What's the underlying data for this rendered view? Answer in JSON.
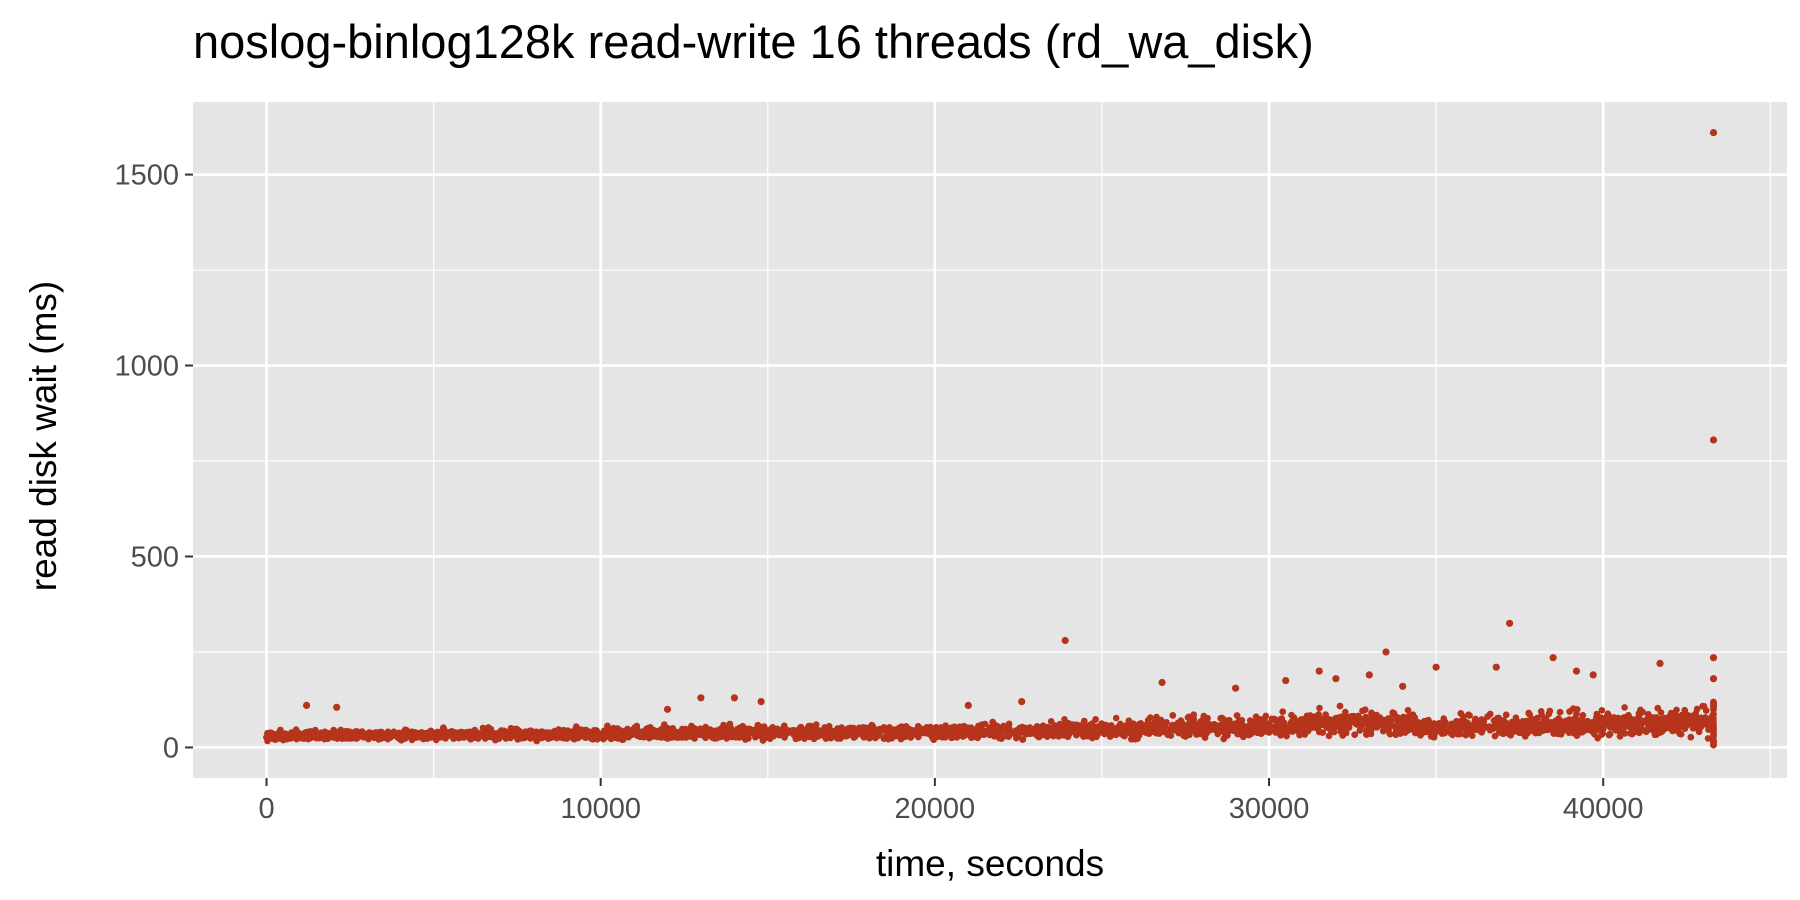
{
  "chart_data": {
    "type": "scatter",
    "title": "noslog-binlog128k read-write 16 threads (rd_wa_disk)",
    "xlabel": "time, seconds",
    "ylabel": "read disk wait (ms)",
    "xlim": [
      -2200,
      45500
    ],
    "ylim": [
      -80,
      1690
    ],
    "x_ticks": [
      0,
      10000,
      20000,
      30000,
      40000
    ],
    "x_tick_labels": [
      "0",
      "10000",
      "20000",
      "30000",
      "40000"
    ],
    "y_ticks": [
      0,
      500,
      1000,
      1500
    ],
    "y_tick_labels": [
      "0",
      "500",
      "1000",
      "1500"
    ],
    "grid": true,
    "legend": "none",
    "point_color": "#B5341B",
    "panel_background": "#E5E5E5",
    "series": [
      {
        "band": [
          {
            "x": 0,
            "low": 15,
            "high": 45
          },
          {
            "x": 5000,
            "low": 15,
            "high": 50
          },
          {
            "x": 10000,
            "low": 15,
            "high": 55
          },
          {
            "x": 15000,
            "low": 17,
            "high": 60
          },
          {
            "x": 20000,
            "low": 17,
            "high": 65
          },
          {
            "x": 25000,
            "low": 17,
            "high": 72
          },
          {
            "x": 30000,
            "low": 18,
            "high": 90
          },
          {
            "x": 33000,
            "low": 18,
            "high": 110
          },
          {
            "x": 35000,
            "low": 18,
            "high": 85
          },
          {
            "x": 40000,
            "low": 18,
            "high": 100
          },
          {
            "x": 43300,
            "low": 15,
            "high": 110
          }
        ],
        "outliers": [
          {
            "x": 1200,
            "y": 110
          },
          {
            "x": 2100,
            "y": 105
          },
          {
            "x": 12000,
            "y": 100
          },
          {
            "x": 13000,
            "y": 130
          },
          {
            "x": 14000,
            "y": 130
          },
          {
            "x": 14800,
            "y": 120
          },
          {
            "x": 21000,
            "y": 110
          },
          {
            "x": 22600,
            "y": 120
          },
          {
            "x": 23900,
            "y": 280
          },
          {
            "x": 26800,
            "y": 170
          },
          {
            "x": 29000,
            "y": 155
          },
          {
            "x": 30500,
            "y": 175
          },
          {
            "x": 31500,
            "y": 200
          },
          {
            "x": 32000,
            "y": 180
          },
          {
            "x": 33000,
            "y": 190
          },
          {
            "x": 33500,
            "y": 250
          },
          {
            "x": 34000,
            "y": 160
          },
          {
            "x": 35000,
            "y": 210
          },
          {
            "x": 36800,
            "y": 210
          },
          {
            "x": 37200,
            "y": 325
          },
          {
            "x": 38500,
            "y": 235
          },
          {
            "x": 39200,
            "y": 200
          },
          {
            "x": 39700,
            "y": 190
          },
          {
            "x": 41700,
            "y": 220
          },
          {
            "x": 43300,
            "y": 235
          },
          {
            "x": 43300,
            "y": 180
          },
          {
            "x": 43300,
            "y": 805
          },
          {
            "x": 43300,
            "y": 1610
          }
        ]
      }
    ]
  }
}
